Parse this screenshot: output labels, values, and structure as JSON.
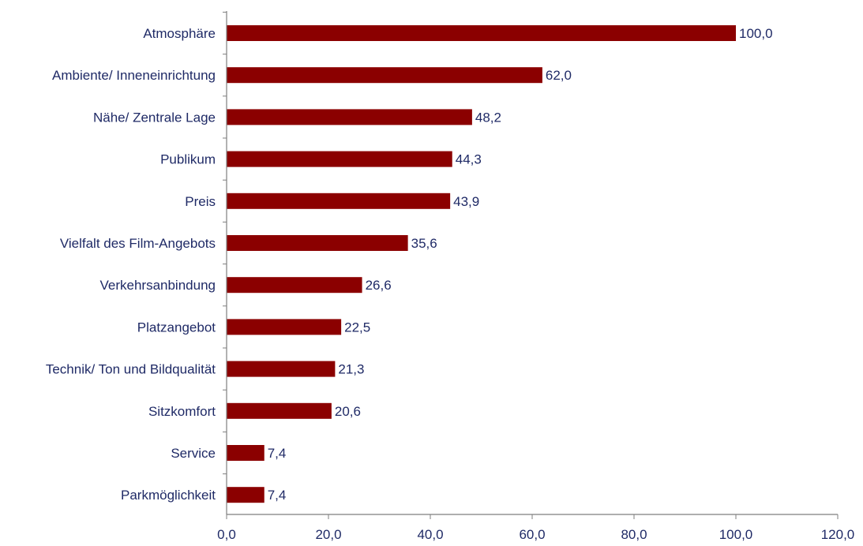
{
  "chart_data": {
    "type": "bar",
    "orientation": "horizontal",
    "categories": [
      "Atmosphäre",
      "Ambiente/ Inneneinrichtung",
      "Nähe/ Zentrale Lage",
      "Publikum",
      "Preis",
      "Vielfalt des Film-Angebots",
      "Verkehrsanbindung",
      "Platzangebot",
      "Technik/ Ton und Bildqualität",
      "Sitzkomfort",
      "Service",
      "Parkmöglichkeit"
    ],
    "values": [
      100.0,
      62.0,
      48.2,
      44.3,
      43.9,
      35.6,
      26.6,
      22.5,
      21.3,
      20.6,
      7.4,
      7.4
    ],
    "value_labels": [
      "100,0",
      "62,0",
      "48,2",
      "44,3",
      "43,9",
      "35,6",
      "26,6",
      "22,5",
      "21,3",
      "20,6",
      "7,4",
      "7,4"
    ],
    "x_ticks": [
      0,
      20,
      40,
      60,
      80,
      100,
      120
    ],
    "x_tick_labels": [
      "0,0",
      "20,0",
      "40,0",
      "60,0",
      "80,0",
      "100,0",
      "120,0"
    ],
    "xlim": [
      0,
      120
    ],
    "grid": false,
    "title": "",
    "xlabel": "",
    "ylabel": ""
  },
  "colors": {
    "bar": "#8b0000",
    "text": "#1f2a66",
    "axis": "#7f7f7f"
  }
}
